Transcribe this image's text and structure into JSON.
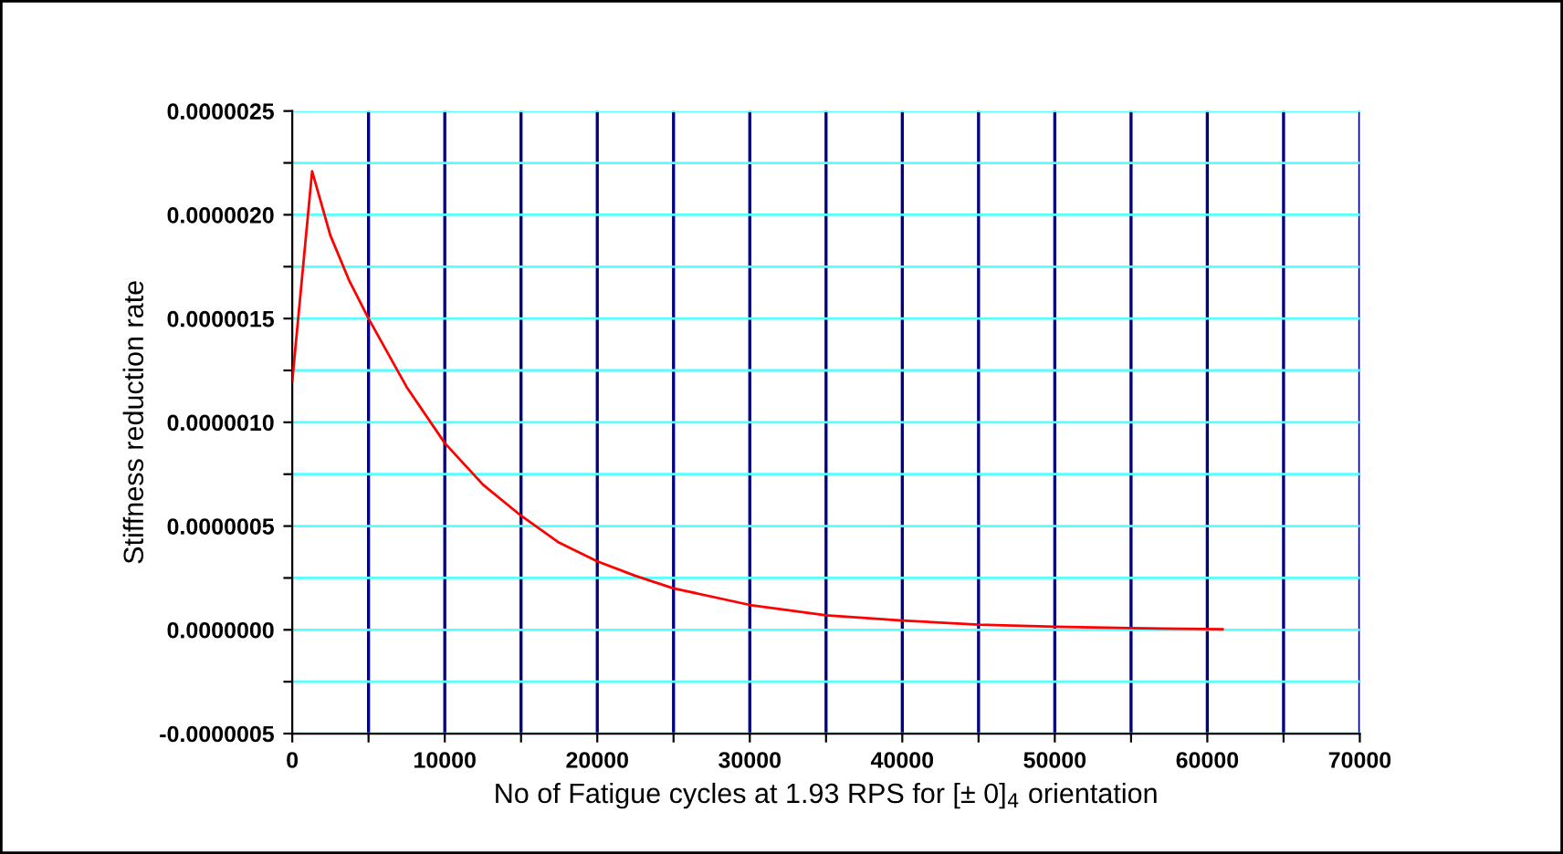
{
  "chart_data": {
    "type": "line",
    "xlabel": "No of Fatigue cycles at 1.93 RPS for [± 0]$_{4}$ orientation",
    "ylabel": "Stiffness reduction rate",
    "x": [
      0,
      1300,
      2500,
      3750,
      5000,
      7500,
      10000,
      12500,
      15000,
      17500,
      20000,
      22500,
      25000,
      30000,
      35000,
      40000,
      45000,
      50000,
      55000,
      61000
    ],
    "series": [
      {
        "color": "#ff0000",
        "values": [
          1.2e-06,
          2.21e-06,
          1.9e-06,
          1.68e-06,
          1.5e-06,
          1.17e-06,
          9e-07,
          7e-07,
          5.5e-07,
          4.2e-07,
          3.3e-07,
          2.6e-07,
          2e-07,
          1.2e-07,
          7e-08,
          4.5e-08,
          2.5e-08,
          1.5e-08,
          8e-09,
          3e-09
        ]
      }
    ],
    "xlim": [
      0,
      70000
    ],
    "xticks": [
      0,
      {
        "value": 5000,
        "label": null
      },
      10000,
      {
        "value": 15000,
        "label": null
      },
      20000,
      {
        "value": 25000,
        "label": null
      },
      30000,
      {
        "value": 35000,
        "label": null
      },
      40000,
      {
        "value": 45000,
        "label": null
      },
      50000,
      {
        "value": 55000,
        "label": null
      },
      60000,
      {
        "value": 65000,
        "label": null
      },
      70000
    ],
    "ylim": [
      -5e-07,
      2.5e-06
    ],
    "yticks": [
      {
        "value": -5e-07,
        "label": "-0.0000005"
      },
      {
        "value": -2.5e-07,
        "label": null
      },
      {
        "value": 0,
        "label": "0.0000000"
      },
      {
        "value": 2.5e-07,
        "label": null
      },
      {
        "value": 5e-07,
        "label": "0.0000005"
      },
      {
        "value": 7.5e-07,
        "label": null
      },
      {
        "value": 1e-06,
        "label": "0.0000010"
      },
      {
        "value": 1.25e-06,
        "label": null
      },
      {
        "value": 1.5e-06,
        "label": "0.0000015"
      },
      {
        "value": 1.75e-06,
        "label": null
      },
      {
        "value": 2e-06,
        "label": "0.0000020"
      },
      {
        "value": 2.25e-06,
        "label": null
      },
      {
        "value": 2.5e-06,
        "label": "0.0000025"
      }
    ],
    "grid": true,
    "legend": false,
    "marker": "none",
    "line_style": "solid"
  }
}
